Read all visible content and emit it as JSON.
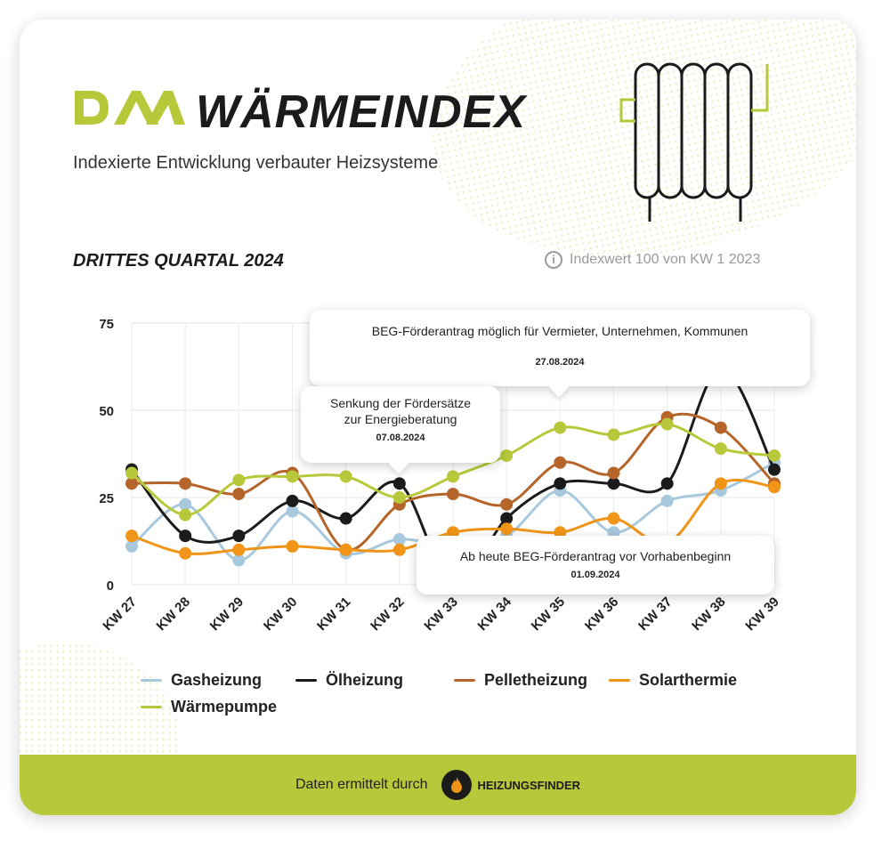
{
  "header": {
    "logo_text": "DAA",
    "title": "WÄRMEINDEX",
    "subtitle": "Indexierte Entwicklung verbauter Heizsysteme",
    "quarter_label": "DRITTES QUARTAL 2024",
    "info_icon": "info-icon",
    "info_text": "Indexwert 100 von KW 1 2023"
  },
  "colors": {
    "brand": "#b7c93a",
    "Gasheizung": "#a8c8de",
    "Ölheizung": "#1b1b1b",
    "Pelletheizung": "#b5652a",
    "Solarthermie": "#f09518",
    "Wärmepumpe": "#b7c93a"
  },
  "chart_data": {
    "type": "line",
    "title": "",
    "xlabel": "",
    "ylabel": "",
    "ylim": [
      0,
      75
    ],
    "yticks": [
      0,
      25,
      50,
      75
    ],
    "grid": true,
    "legend_position": "bottom",
    "x": [
      "KW 27",
      "KW 28",
      "KW 29",
      "KW 30",
      "KW 31",
      "KW 32",
      "KW 33",
      "KW 34",
      "KW 35",
      "KW 36",
      "KW 37",
      "KW 38",
      "KW 39"
    ],
    "series": [
      {
        "name": "Gasheizung",
        "values": [
          11,
          23,
          7,
          21,
          9,
          13,
          11,
          14,
          27,
          15,
          24,
          27,
          35
        ]
      },
      {
        "name": "Ölheizung",
        "values": [
          33,
          14,
          14,
          24,
          19,
          29,
          0,
          19,
          29,
          29,
          29,
          62,
          33
        ]
      },
      {
        "name": "Pelletheizung",
        "values": [
          29,
          29,
          26,
          32,
          10,
          23,
          26,
          23,
          35,
          32,
          48,
          45,
          29
        ]
      },
      {
        "name": "Solarthermie",
        "values": [
          14,
          9,
          10,
          11,
          10,
          10,
          15,
          16,
          15,
          19,
          12,
          29,
          28
        ]
      },
      {
        "name": "Wärmepumpe",
        "values": [
          32,
          20,
          30,
          31,
          31,
          25,
          31,
          37,
          45,
          43,
          46,
          39,
          37
        ]
      }
    ],
    "annotations": [
      {
        "text": "BEG-Förderantrag möglich für Vermieter, Unternehmen, Kommunen",
        "date": "27.08.2024"
      },
      {
        "text": "Senkung der Fördersätze zur Energieberatung",
        "date": "07.08.2024"
      },
      {
        "text": "Ab heute BEG-Förderantrag vor Vorhabenbeginn",
        "date": "01.09.2024"
      }
    ]
  },
  "legend": [
    "Gasheizung",
    "Ölheizung",
    "Pelletheizung",
    "Solarthermie",
    "Wärmepumpe"
  ],
  "footer": {
    "text": "Daten ermittelt durch",
    "partner_icon": "flame-icon",
    "partner_name": "HEIZUNGSFINDER"
  }
}
